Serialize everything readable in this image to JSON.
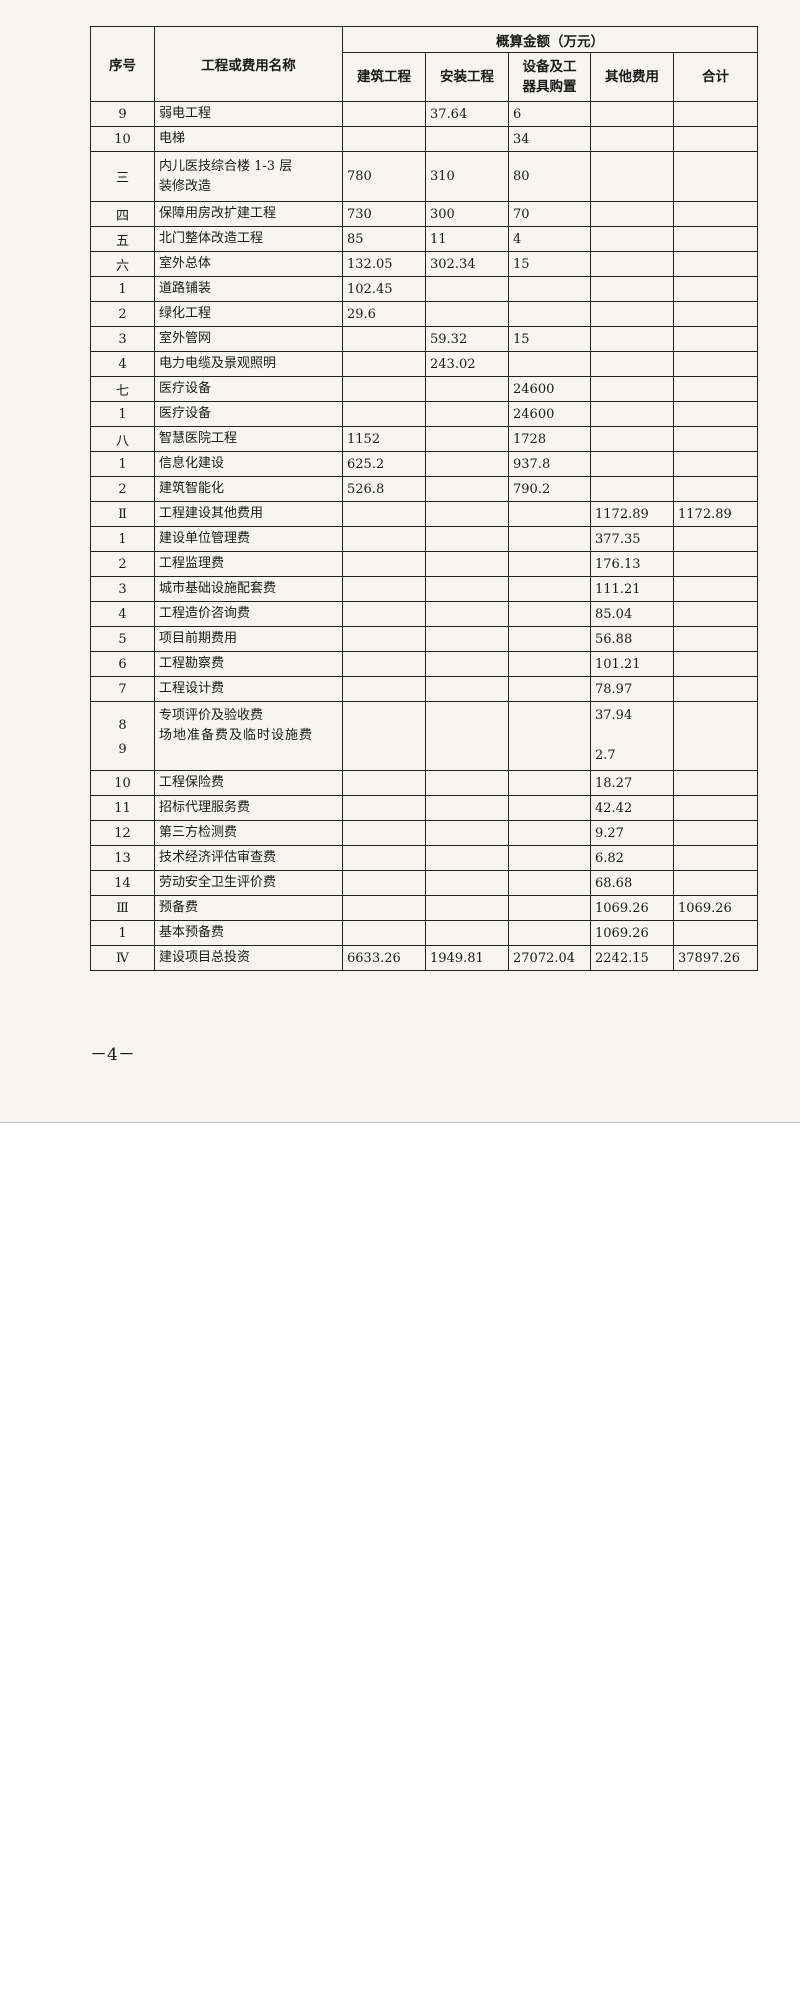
{
  "table": {
    "headers": {
      "seq": "序号",
      "name": "工程或费用名称",
      "group": "概算金额（万元）",
      "cols": [
        "建筑工程",
        "安装工程",
        "设备及工\n器具购置",
        "其他费用",
        "合计"
      ]
    },
    "rows": [
      {
        "seq": "9",
        "name": "弱电工程",
        "values": [
          "",
          "37.64",
          "6",
          "",
          ""
        ]
      },
      {
        "seq": "10",
        "name": "电梯",
        "values": [
          "",
          "",
          "34",
          "",
          ""
        ]
      },
      {
        "seq": "三",
        "name": "内儿医技综合楼 1-3 层\n装修改造",
        "values": [
          "780",
          "310",
          "80",
          "",
          ""
        ]
      },
      {
        "seq": "四",
        "name": "保障用房改扩建工程",
        "values": [
          "730",
          "300",
          "70",
          "",
          ""
        ]
      },
      {
        "seq": "五",
        "name": "北门整体改造工程",
        "values": [
          "85",
          "11",
          "4",
          "",
          ""
        ]
      },
      {
        "seq": "六",
        "name": "室外总体",
        "values": [
          "132.05",
          "302.34",
          "15",
          "",
          ""
        ]
      },
      {
        "seq": "1",
        "name": "道路铺装",
        "values": [
          "102.45",
          "",
          "",
          "",
          ""
        ]
      },
      {
        "seq": "2",
        "name": "绿化工程",
        "values": [
          "29.6",
          "",
          "",
          "",
          ""
        ]
      },
      {
        "seq": "3",
        "name": "室外管网",
        "values": [
          "",
          "59.32",
          "15",
          "",
          ""
        ]
      },
      {
        "seq": "4",
        "name": "电力电缆及景观照明",
        "values": [
          "",
          "243.02",
          "",
          "",
          ""
        ]
      },
      {
        "seq": "七",
        "name": "医疗设备",
        "values": [
          "",
          "",
          "24600",
          "",
          ""
        ]
      },
      {
        "seq": "1",
        "name": "医疗设备",
        "values": [
          "",
          "",
          "24600",
          "",
          ""
        ]
      },
      {
        "seq": "八",
        "name": "智慧医院工程",
        "values": [
          "1152",
          "",
          "1728",
          "",
          ""
        ]
      },
      {
        "seq": "1",
        "name": "信息化建设",
        "values": [
          "625.2",
          "",
          "937.8",
          "",
          ""
        ]
      },
      {
        "seq": "2",
        "name": "建筑智能化",
        "values": [
          "526.8",
          "",
          "790.2",
          "",
          ""
        ]
      },
      {
        "seq": "Ⅱ",
        "name": "工程建设其他费用",
        "values": [
          "",
          "",
          "",
          "1172.89",
          "1172.89"
        ]
      },
      {
        "seq": "1",
        "name": "建设单位管理费",
        "values": [
          "",
          "",
          "",
          "377.35",
          ""
        ]
      },
      {
        "seq": "2",
        "name": "工程监理费",
        "values": [
          "",
          "",
          "",
          "176.13",
          ""
        ]
      },
      {
        "seq": "3",
        "name": "城市基础设施配套费",
        "values": [
          "",
          "",
          "",
          "111.21",
          ""
        ]
      },
      {
        "seq": "4",
        "name": "工程造价咨询费",
        "values": [
          "",
          "",
          "",
          "85.04",
          ""
        ]
      },
      {
        "seq": "5",
        "name": "项目前期费用",
        "values": [
          "",
          "",
          "",
          "56.88",
          ""
        ]
      },
      {
        "seq": "6",
        "name": "工程勘察费",
        "values": [
          "",
          "",
          "",
          "101.21",
          ""
        ]
      },
      {
        "seq": "7",
        "name": "工程设计费",
        "values": [
          "",
          "",
          "",
          "78.97",
          ""
        ]
      },
      {
        "merged": true,
        "items": [
          {
            "seq": "8",
            "name": "专项评价及验收费",
            "other": "37.94"
          },
          {
            "seq": "9",
            "name": "场地准备费及临时设施费",
            "other": "2.7"
          }
        ]
      },
      {
        "seq": "10",
        "name": "工程保险费",
        "values": [
          "",
          "",
          "",
          "18.27",
          ""
        ]
      },
      {
        "seq": "11",
        "name": "招标代理服务费",
        "values": [
          "",
          "",
          "",
          "42.42",
          ""
        ]
      },
      {
        "seq": "12",
        "name": "第三方检测费",
        "values": [
          "",
          "",
          "",
          "9.27",
          ""
        ]
      },
      {
        "seq": "13",
        "name": "技术经济评估审查费",
        "values": [
          "",
          "",
          "",
          "6.82",
          ""
        ]
      },
      {
        "seq": "14",
        "name": "劳动安全卫生评价费",
        "values": [
          "",
          "",
          "",
          "68.68",
          ""
        ]
      },
      {
        "seq": "Ⅲ",
        "name": "预备费",
        "values": [
          "",
          "",
          "",
          "1069.26",
          "1069.26"
        ]
      },
      {
        "seq": "1",
        "name": "基本预备费",
        "values": [
          "",
          "",
          "",
          "1069.26",
          ""
        ]
      },
      {
        "seq": "Ⅳ",
        "name": "建设项目总投资",
        "values": [
          "6633.26",
          "1949.81",
          "27072.04",
          "2242.15",
          "37897.26"
        ]
      }
    ]
  },
  "page_number": "－4－"
}
